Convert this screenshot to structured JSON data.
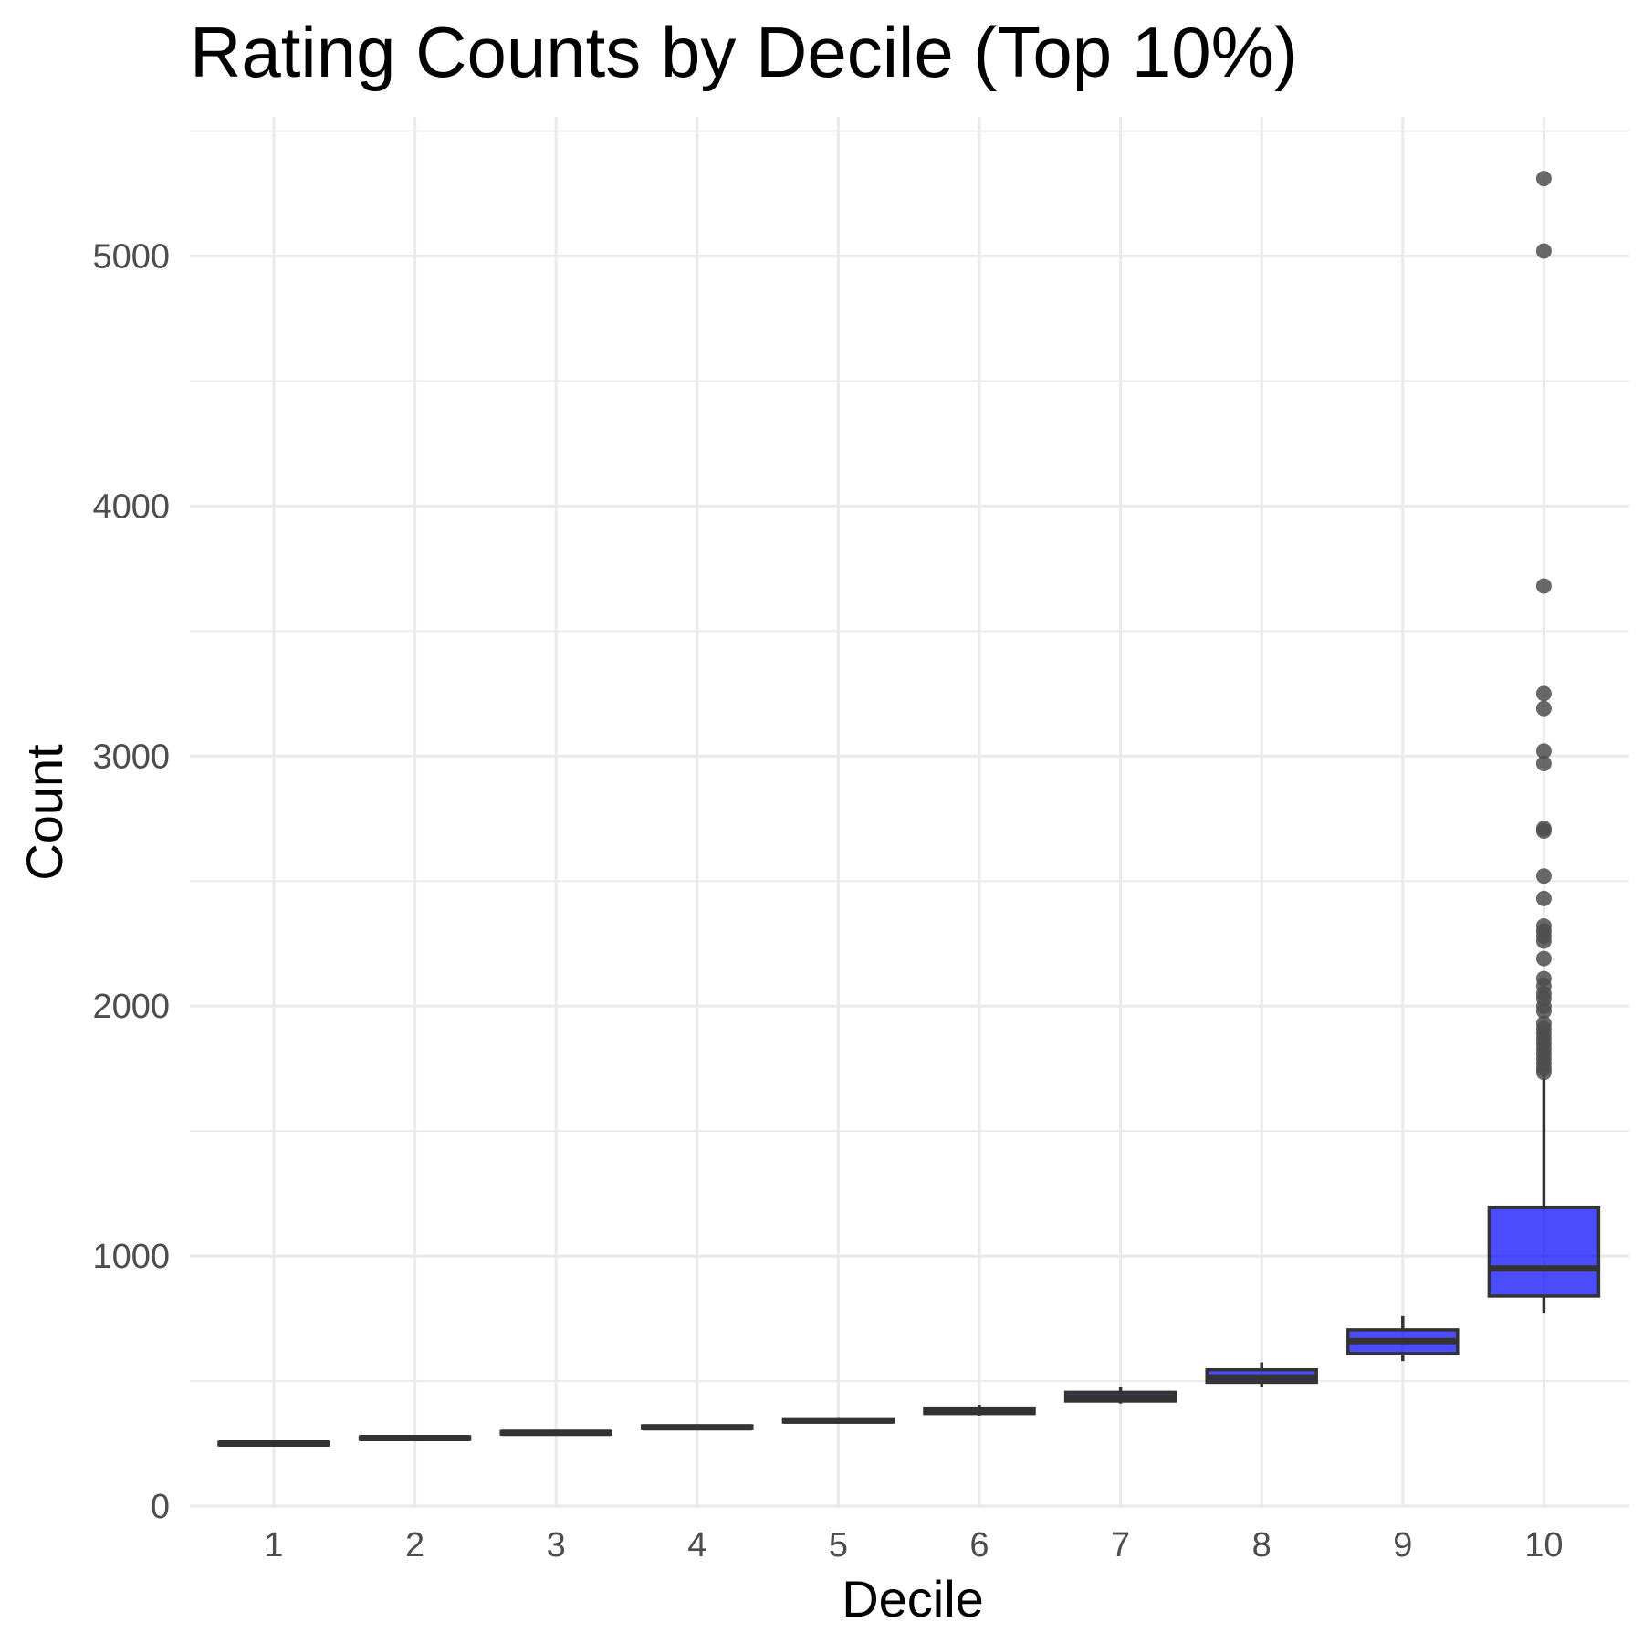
{
  "chart_data": {
    "type": "boxplot",
    "title": "Rating Counts by Decile (Top 10%)",
    "xlabel": "Decile",
    "ylabel": "Count",
    "categories": [
      "1",
      "2",
      "3",
      "4",
      "5",
      "6",
      "7",
      "8",
      "9",
      "10"
    ],
    "ylim": [
      0,
      5550
    ],
    "yticks": [
      0,
      1000,
      2000,
      3000,
      4000,
      5000
    ],
    "ytick_labels": [
      "0",
      "1000",
      "2000",
      "3000",
      "4000",
      "5000"
    ],
    "grid": true,
    "box_fill_color": "#0000ff",
    "box_line_color": "#333333",
    "outlier_color": "#4d4d4d",
    "boxes": [
      {
        "category": "1",
        "min": 240,
        "q1": 245,
        "median": 250,
        "q3": 255,
        "max": 260,
        "outliers": []
      },
      {
        "category": "2",
        "min": 262,
        "q1": 267,
        "median": 272,
        "q3": 277,
        "max": 282,
        "outliers": []
      },
      {
        "category": "3",
        "min": 283,
        "q1": 288,
        "median": 293,
        "q3": 298,
        "max": 303,
        "outliers": []
      },
      {
        "category": "4",
        "min": 304,
        "q1": 310,
        "median": 315,
        "q3": 321,
        "max": 327,
        "outliers": []
      },
      {
        "category": "5",
        "min": 330,
        "q1": 336,
        "median": 342,
        "q3": 349,
        "max": 356,
        "outliers": []
      },
      {
        "category": "6",
        "min": 362,
        "q1": 370,
        "median": 380,
        "q3": 392,
        "max": 405,
        "outliers": []
      },
      {
        "category": "7",
        "min": 410,
        "q1": 420,
        "median": 435,
        "q3": 455,
        "max": 475,
        "outliers": []
      },
      {
        "category": "8",
        "min": 478,
        "q1": 495,
        "median": 515,
        "q3": 545,
        "max": 575,
        "outliers": []
      },
      {
        "category": "9",
        "min": 580,
        "q1": 610,
        "median": 660,
        "q3": 705,
        "max": 760,
        "outliers": []
      },
      {
        "category": "10",
        "min": 770,
        "q1": 840,
        "median": 950,
        "q3": 1195,
        "max": 1720,
        "outliers": [
          5310,
          5020,
          3680,
          3250,
          3190,
          3020,
          2970,
          2710,
          2700,
          2520,
          2430,
          2320,
          2300,
          2280,
          2260,
          2190,
          2110,
          2080,
          2050,
          2030,
          2000,
          1980,
          1930,
          1910,
          1890,
          1870,
          1850,
          1830,
          1810,
          1790,
          1770,
          1750,
          1735
        ]
      }
    ]
  }
}
